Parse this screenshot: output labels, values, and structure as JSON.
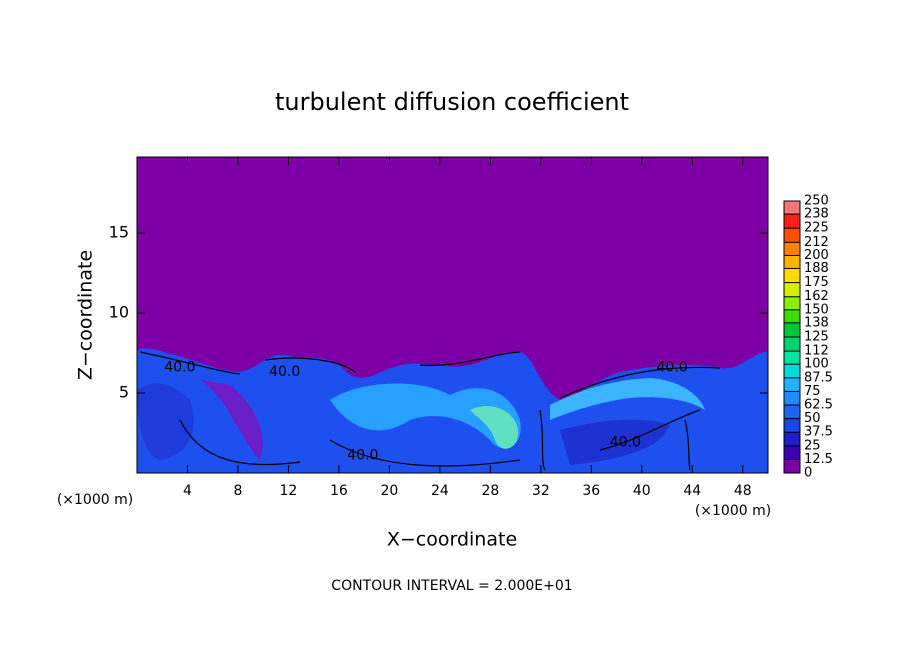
{
  "chart_data": {
    "type": "contour",
    "title": "turbulent diffusion coefficient",
    "x_label": "X−coordinate",
    "y_label": "Z−coordinate",
    "x_unit_label": "(×1000 m)",
    "y_unit_label": "(×1000 m)",
    "footnote": "CONTOUR INTERVAL = 2.000E+01",
    "xlim": [
      0,
      50
    ],
    "ylim": [
      0,
      19.75
    ],
    "xticks": [
      4,
      8,
      12,
      16,
      20,
      24,
      28,
      32,
      36,
      40,
      44,
      48
    ],
    "yticks": [
      5,
      10,
      15
    ],
    "background_color": "#7d00a6",
    "contour_labels": [
      {
        "x": 3.4,
        "y": 6.6,
        "label": "40.0"
      },
      {
        "x": 11.7,
        "y": 6.3,
        "label": "40.0"
      },
      {
        "x": 17.9,
        "y": 1.1,
        "label": "40.0"
      },
      {
        "x": 38.7,
        "y": 1.9,
        "label": "40.0"
      },
      {
        "x": 42.4,
        "y": 6.6,
        "label": "40.0"
      }
    ],
    "colorbar": {
      "levels": [
        0,
        12.5,
        25,
        37.5,
        50,
        62.5,
        75,
        87.5,
        100,
        112,
        125,
        138,
        150,
        162,
        175,
        188,
        200,
        212,
        225,
        238,
        250
      ],
      "colors": [
        "#7d00a6",
        "#3c00b4",
        "#1e1ec8",
        "#1e46e6",
        "#1e64f0",
        "#1e8cff",
        "#1eb4ff",
        "#00dcdc",
        "#00e6a0",
        "#00d26e",
        "#00c83c",
        "#3cdc00",
        "#8cf000",
        "#d2f000",
        "#ffdc00",
        "#ffb400",
        "#ff8200",
        "#ff5000",
        "#ff1e1e",
        "#f07878"
      ]
    }
  }
}
